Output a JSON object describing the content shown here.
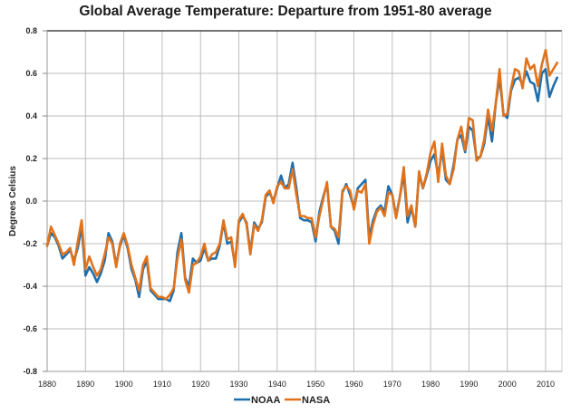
{
  "chart_data": {
    "type": "line",
    "title": "Global Average Temperature: Departure from 1951-80 average",
    "xlabel": "",
    "ylabel": "Degrees Celsius",
    "xlim": [
      1880,
      2013
    ],
    "ylim": [
      -0.8,
      0.8
    ],
    "xticks": [
      1880,
      1890,
      1900,
      1910,
      1920,
      1930,
      1940,
      1950,
      1960,
      1970,
      1980,
      1990,
      2000,
      2010
    ],
    "yticks": [
      0.8,
      0.6,
      0.4,
      0.2,
      0.0,
      -0.2,
      -0.4,
      -0.6,
      -0.8
    ],
    "ytick_labels": [
      "0.8",
      "0.6",
      "0.4",
      "0.2",
      "0.0",
      "-0.2",
      "-0.4",
      "-0.6",
      "-0.8"
    ],
    "grid": true,
    "legend_position": "bottom-center",
    "x_start": 1880,
    "series": [
      {
        "name": "NOAA",
        "color": "#1f6fad",
        "values": [
          -0.21,
          -0.15,
          -0.17,
          -0.21,
          -0.27,
          -0.25,
          -0.23,
          -0.28,
          -0.22,
          -0.12,
          -0.35,
          -0.31,
          -0.34,
          -0.38,
          -0.34,
          -0.28,
          -0.15,
          -0.19,
          -0.3,
          -0.21,
          -0.16,
          -0.22,
          -0.32,
          -0.37,
          -0.45,
          -0.32,
          -0.28,
          -0.42,
          -0.44,
          -0.46,
          -0.46,
          -0.46,
          -0.47,
          -0.42,
          -0.24,
          -0.15,
          -0.36,
          -0.4,
          -0.27,
          -0.29,
          -0.28,
          -0.22,
          -0.28,
          -0.27,
          -0.27,
          -0.21,
          -0.1,
          -0.2,
          -0.19,
          -0.3,
          -0.1,
          -0.07,
          -0.1,
          -0.24,
          -0.1,
          -0.13,
          -0.1,
          0.02,
          0.04,
          0.0,
          0.06,
          0.12,
          0.06,
          0.08,
          0.18,
          0.06,
          -0.08,
          -0.09,
          -0.09,
          -0.1,
          -0.19,
          -0.05,
          0.02,
          0.08,
          -0.12,
          -0.14,
          -0.2,
          0.04,
          0.08,
          0.03,
          -0.03,
          0.06,
          0.08,
          0.1,
          -0.17,
          -0.09,
          -0.04,
          -0.02,
          -0.05,
          0.07,
          0.03,
          -0.07,
          0.02,
          0.13,
          -0.1,
          -0.03,
          -0.12,
          0.13,
          0.06,
          0.12,
          0.19,
          0.22,
          0.12,
          0.24,
          0.1,
          0.08,
          0.17,
          0.29,
          0.31,
          0.23,
          0.35,
          0.33,
          0.2,
          0.21,
          0.27,
          0.4,
          0.28,
          0.46,
          0.58,
          0.41,
          0.39,
          0.52,
          0.57,
          0.58,
          0.55,
          0.61,
          0.56,
          0.55,
          0.47,
          0.6,
          0.62,
          0.49,
          0.54,
          0.58
        ]
      },
      {
        "name": "NASA",
        "color": "#e0731c",
        "values": [
          -0.21,
          -0.12,
          -0.16,
          -0.2,
          -0.25,
          -0.24,
          -0.22,
          -0.3,
          -0.19,
          -0.09,
          -0.32,
          -0.26,
          -0.31,
          -0.35,
          -0.32,
          -0.25,
          -0.17,
          -0.2,
          -0.31,
          -0.2,
          -0.15,
          -0.21,
          -0.3,
          -0.36,
          -0.42,
          -0.3,
          -0.26,
          -0.41,
          -0.43,
          -0.45,
          -0.45,
          -0.46,
          -0.44,
          -0.41,
          -0.27,
          -0.18,
          -0.37,
          -0.43,
          -0.3,
          -0.29,
          -0.26,
          -0.2,
          -0.28,
          -0.25,
          -0.24,
          -0.2,
          -0.09,
          -0.18,
          -0.17,
          -0.31,
          -0.09,
          -0.06,
          -0.11,
          -0.25,
          -0.11,
          -0.14,
          -0.09,
          0.03,
          0.05,
          -0.01,
          0.07,
          0.09,
          0.06,
          0.06,
          0.15,
          0.03,
          -0.07,
          -0.07,
          -0.08,
          -0.08,
          -0.17,
          -0.07,
          0.01,
          0.09,
          -0.12,
          -0.13,
          -0.17,
          0.05,
          0.07,
          0.05,
          -0.04,
          0.05,
          0.04,
          0.08,
          -0.2,
          -0.11,
          -0.05,
          -0.03,
          -0.07,
          0.04,
          0.03,
          -0.08,
          0.02,
          0.16,
          -0.07,
          -0.02,
          -0.12,
          0.14,
          0.06,
          0.13,
          0.23,
          0.28,
          0.09,
          0.27,
          0.12,
          0.08,
          0.15,
          0.29,
          0.35,
          0.24,
          0.39,
          0.38,
          0.19,
          0.21,
          0.29,
          0.43,
          0.33,
          0.46,
          0.62,
          0.4,
          0.41,
          0.53,
          0.62,
          0.61,
          0.53,
          0.67,
          0.62,
          0.64,
          0.54,
          0.64,
          0.71,
          0.59,
          0.62,
          0.65
        ]
      }
    ]
  }
}
